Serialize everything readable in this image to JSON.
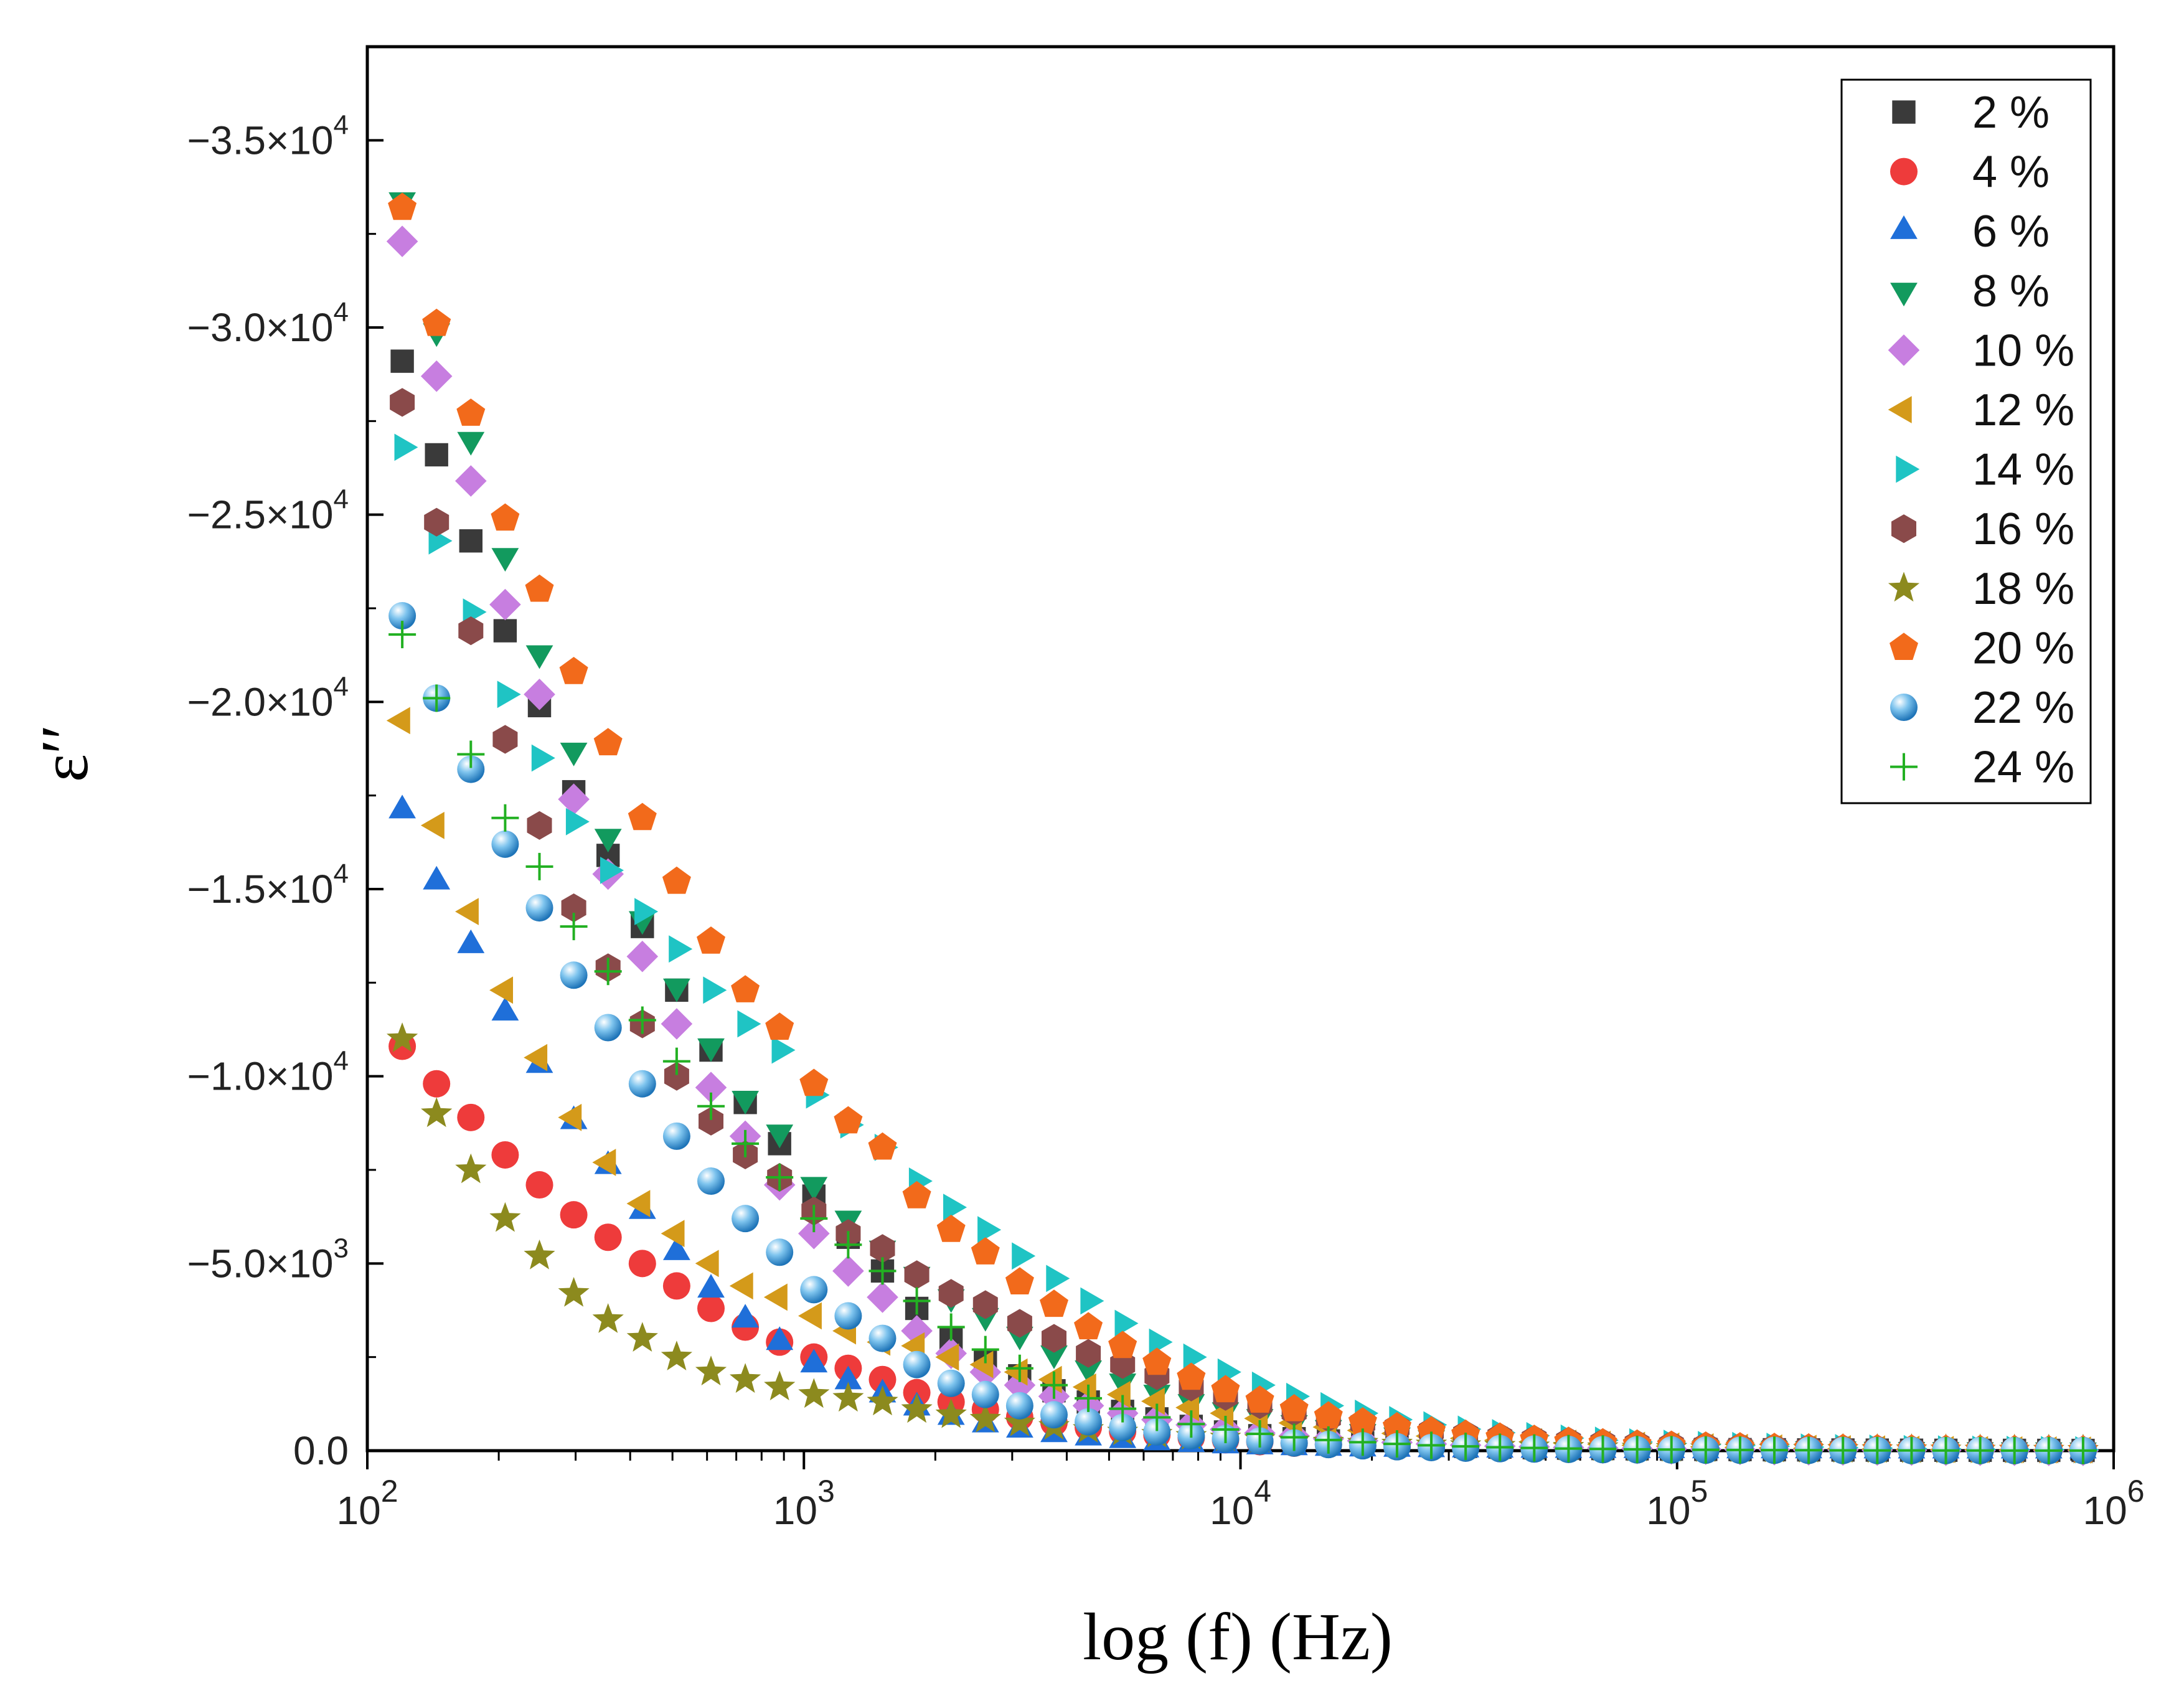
{
  "chart_data": {
    "type": "scatter",
    "title": "",
    "xlabel": "log (f) (Hz)",
    "ylabel": "ε′′",
    "x_scale": "log",
    "xlim": [
      100,
      1000000
    ],
    "ylim": [
      0,
      -37500
    ],
    "x_ticks": [
      {
        "value": 100,
        "base": "10",
        "exp": "2"
      },
      {
        "value": 1000,
        "base": "10",
        "exp": "3"
      },
      {
        "value": 10000,
        "base": "10",
        "exp": "4"
      },
      {
        "value": 100000,
        "base": "10",
        "exp": "5"
      },
      {
        "value": 1000000,
        "base": "10",
        "exp": "6"
      }
    ],
    "y_ticks": [
      {
        "value": 0,
        "mant": "0.0",
        "exp": ""
      },
      {
        "value": -5000,
        "mant": "−5.0×10",
        "exp": "3"
      },
      {
        "value": -10000,
        "mant": "−1.0×10",
        "exp": "4"
      },
      {
        "value": -15000,
        "mant": "−1.5×10",
        "exp": "4"
      },
      {
        "value": -20000,
        "mant": "−2.0×10",
        "exp": "4"
      },
      {
        "value": -25000,
        "mant": "−2.5×10",
        "exp": "4"
      },
      {
        "value": -30000,
        "mant": "−3.0×10",
        "exp": "4"
      },
      {
        "value": -35000,
        "mant": "−3.5×10",
        "exp": "4"
      }
    ],
    "legend_position": "top-right",
    "grid": false,
    "series": [
      {
        "name": "2 %",
        "marker": "square",
        "color": "#3a3a3a",
        "values": [
          -29100,
          -26600,
          -24300,
          -21900,
          -19900,
          -17600,
          -15900,
          -14000,
          -12300,
          -10700,
          -9300,
          -8200,
          -6800,
          -5700,
          -4800,
          -3800,
          -3000,
          -2400,
          -2000,
          -1600,
          -1300,
          -1050,
          -850,
          -650,
          -500,
          -400,
          -320,
          -260,
          -210,
          -170,
          -140,
          -115,
          -95,
          -80,
          -67,
          -56,
          -48,
          -40,
          -34,
          -29,
          -25,
          -21,
          -18,
          -15,
          -13,
          -11,
          -10,
          -9,
          -8,
          -7
        ]
      },
      {
        "name": "4 %",
        "marker": "circle",
        "color": "#ee3b3b",
        "values": [
          -10800,
          -9800,
          -8900,
          -7900,
          -7100,
          -6300,
          -5700,
          -5000,
          -4400,
          -3800,
          -3300,
          -2900,
          -2500,
          -2200,
          -1900,
          -1550,
          -1300,
          -1100,
          -900,
          -750,
          -620,
          -510,
          -420,
          -350,
          -290,
          -240,
          -200,
          -165,
          -137,
          -113,
          -94,
          -78,
          -64,
          -53,
          -44,
          -37,
          -31,
          -26,
          -21,
          -18,
          -15,
          -13,
          -11,
          -9,
          -8,
          -7,
          -6,
          -5,
          -4,
          -4
        ]
      },
      {
        "name": "6 %",
        "marker": "triangle-up",
        "color": "#1f6fd9",
        "values": [
          -17100,
          -15200,
          -13500,
          -11700,
          -10300,
          -8800,
          -7600,
          -6400,
          -5300,
          -4300,
          -3500,
          -2900,
          -2300,
          -1850,
          -1500,
          -1150,
          -900,
          -700,
          -560,
          -440,
          -350,
          -280,
          -220,
          -175,
          -140,
          -112,
          -90,
          -72,
          -58,
          -47,
          -38,
          -31,
          -25,
          -21,
          -17,
          -14,
          -12,
          -10,
          -8,
          -7,
          -6,
          -5,
          -4,
          -4,
          -3,
          -3,
          -3,
          -2,
          -2,
          -2
        ]
      },
      {
        "name": "8 %",
        "marker": "triangle-down",
        "color": "#129a5e",
        "values": [
          -33400,
          -29900,
          -27000,
          -23900,
          -21300,
          -18700,
          -16400,
          -14200,
          -12400,
          -10800,
          -9400,
          -8500,
          -7100,
          -6200,
          -5400,
          -4700,
          -4100,
          -3600,
          -3100,
          -2600,
          -2200,
          -1850,
          -1550,
          -1300,
          -1080,
          -900,
          -740,
          -610,
          -500,
          -410,
          -335,
          -275,
          -225,
          -185,
          -152,
          -125,
          -103,
          -85,
          -70,
          -58,
          -48,
          -40,
          -33,
          -27,
          -23,
          -19,
          -16,
          -14,
          -12,
          -10
        ]
      },
      {
        "name": "10 %",
        "marker": "diamond",
        "color": "#c77ee0",
        "values": [
          -32300,
          -28700,
          -25900,
          -22600,
          -20200,
          -17400,
          -15400,
          -13200,
          -11400,
          -9700,
          -8400,
          -7100,
          -5800,
          -4800,
          -4100,
          -3200,
          -2600,
          -2100,
          -1750,
          -1450,
          -1200,
          -1000,
          -830,
          -690,
          -570,
          -470,
          -390,
          -320,
          -265,
          -218,
          -180,
          -148,
          -122,
          -101,
          -83,
          -69,
          -57,
          -47,
          -39,
          -32,
          -27,
          -22,
          -18,
          -15,
          -13,
          -11,
          -9,
          -8,
          -7,
          -6
        ]
      },
      {
        "name": "12 %",
        "marker": "triangle-left",
        "color": "#d49a1a",
        "values": [
          -19500,
          -16700,
          -14400,
          -12300,
          -10500,
          -8900,
          -7700,
          -6600,
          -5800,
          -5000,
          -4400,
          -4100,
          -3600,
          -3200,
          -2900,
          -2800,
          -2500,
          -2300,
          -2100,
          -1900,
          -1700,
          -1500,
          -1320,
          -1150,
          -1000,
          -860,
          -740,
          -630,
          -540,
          -460,
          -390,
          -330,
          -280,
          -237,
          -200,
          -169,
          -143,
          -121,
          -102,
          -86,
          -73,
          -62,
          -52,
          -44,
          -37,
          -31,
          -26,
          -22,
          -19,
          -16
        ]
      },
      {
        "name": "14 %",
        "marker": "triangle-right",
        "color": "#1fc4c4",
        "values": [
          -26800,
          -24300,
          -22400,
          -20200,
          -18500,
          -16800,
          -15500,
          -14400,
          -13400,
          -12300,
          -11400,
          -10700,
          -9500,
          -8700,
          -8100,
          -7200,
          -6500,
          -5900,
          -5200,
          -4600,
          -4000,
          -3400,
          -2900,
          -2500,
          -2100,
          -1750,
          -1450,
          -1200,
          -1000,
          -830,
          -690,
          -575,
          -480,
          -400,
          -335,
          -280,
          -235,
          -197,
          -165,
          -138,
          -116,
          -97,
          -81,
          -68,
          -57,
          -48,
          -40,
          -34,
          -28,
          -24
        ]
      },
      {
        "name": "16 %",
        "marker": "hexagon",
        "color": "#8a4a4a",
        "values": [
          -28000,
          -24800,
          -21900,
          -19000,
          -16700,
          -14500,
          -12900,
          -11400,
          -10000,
          -8800,
          -7900,
          -7300,
          -6400,
          -5800,
          -5400,
          -4700,
          -4200,
          -3900,
          -3400,
          -3000,
          -2600,
          -2300,
          -2000,
          -1700,
          -1450,
          -1230,
          -1040,
          -880,
          -740,
          -620,
          -520,
          -435,
          -365,
          -305,
          -255,
          -213,
          -178,
          -149,
          -125,
          -104,
          -87,
          -73,
          -61,
          -51,
          -43,
          -36,
          -30,
          -25,
          -21,
          -18
        ]
      },
      {
        "name": "18 %",
        "marker": "star",
        "color": "#8c8a1e",
        "values": [
          -11000,
          -9000,
          -7500,
          -6200,
          -5200,
          -4200,
          -3500,
          -3000,
          -2500,
          -2100,
          -1900,
          -1700,
          -1500,
          -1400,
          -1300,
          -1100,
          -960,
          -840,
          -740,
          -650,
          -570,
          -500,
          -440,
          -385,
          -340,
          -298,
          -262,
          -230,
          -202,
          -178,
          -156,
          -137,
          -120,
          -106,
          -93,
          -82,
          -72,
          -63,
          -55,
          -48,
          -42,
          -37,
          -33,
          -29,
          -25,
          -22,
          -19,
          -17,
          -15,
          -13
        ]
      },
      {
        "name": "20 %",
        "marker": "pentagon",
        "color": "#f26a1b",
        "values": [
          -33200,
          -30100,
          -27700,
          -24900,
          -23000,
          -20800,
          -18900,
          -16900,
          -15200,
          -13600,
          -12300,
          -11300,
          -9800,
          -8800,
          -8100,
          -6800,
          -5900,
          -5300,
          -4500,
          -3900,
          -3300,
          -2800,
          -2350,
          -1950,
          -1620,
          -1340,
          -1110,
          -920,
          -760,
          -630,
          -520,
          -430,
          -355,
          -294,
          -243,
          -201,
          -166,
          -137,
          -113,
          -94,
          -78,
          -64,
          -53,
          -44,
          -36,
          -30,
          -25,
          -21,
          -17,
          -14
        ]
      },
      {
        "name": "22 %",
        "marker": "sphere",
        "color": "#3a9ad9",
        "values": [
          -22300,
          -20100,
          -18200,
          -16200,
          -14500,
          -12700,
          -11300,
          -9800,
          -8400,
          -7200,
          -6200,
          -5300,
          -4300,
          -3600,
          -3000,
          -2300,
          -1800,
          -1500,
          -1200,
          -960,
          -770,
          -620,
          -500,
          -400,
          -320,
          -256,
          -205,
          -164,
          -131,
          -105,
          -84,
          -67,
          -54,
          -43,
          -34,
          -27,
          -22,
          -18,
          -14,
          -11,
          -9,
          -7,
          -6,
          -5,
          -4,
          -3,
          -3,
          -2,
          -2,
          -2
        ]
      },
      {
        "name": "24 %",
        "marker": "plus",
        "color": "#22b022",
        "values": [
          -21800,
          -20100,
          -18600,
          -16900,
          -15600,
          -14000,
          -12800,
          -11500,
          -10400,
          -9200,
          -8200,
          -7300,
          -6200,
          -5500,
          -4800,
          -4000,
          -3300,
          -2700,
          -2200,
          -1750,
          -1400,
          -1120,
          -890,
          -710,
          -565,
          -450,
          -358,
          -285,
          -227,
          -180,
          -143,
          -114,
          -91,
          -72,
          -57,
          -46,
          -36,
          -29,
          -23,
          -18,
          -15,
          -12,
          -9,
          -7,
          -6,
          -5,
          -4,
          -3,
          -3,
          -2
        ]
      }
    ]
  }
}
